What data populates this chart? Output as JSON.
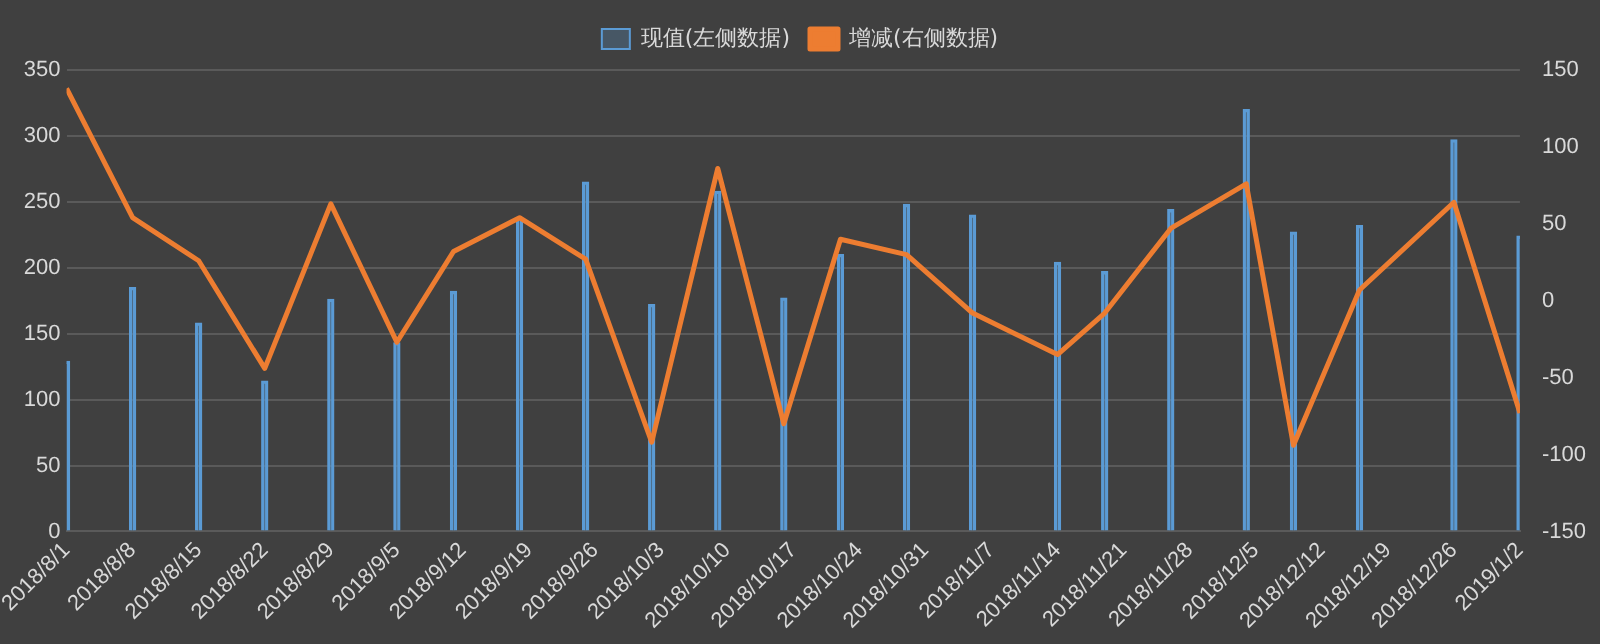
{
  "chart_data": {
    "type": "bar",
    "legend": "top",
    "grid": "y",
    "x": [
      "2018-08-01",
      "2018-08-08",
      "2018-08-15",
      "2018-08-22",
      "2018-08-29",
      "2018-09-05",
      "2018-09-11",
      "2018-09-18",
      "2018-09-25",
      "2018-10-02",
      "2018-10-09",
      "2018-10-16",
      "2018-10-22",
      "2018-10-29",
      "2018-11-05",
      "2018-11-14",
      "2018-11-19",
      "2018-11-26",
      "2018-12-04",
      "2018-12-09",
      "2018-12-16",
      "2018-12-26",
      "2019-01-02"
    ],
    "xlim": [
      "2018-08-01",
      "2019-01-02"
    ],
    "xticks": [
      {
        "value": "2018-08-01",
        "label": "2018/8/1"
      },
      {
        "value": "2018-08-08",
        "label": "2018/8/8"
      },
      {
        "value": "2018-08-15",
        "label": "2018/8/15"
      },
      {
        "value": "2018-08-22",
        "label": "2018/8/22"
      },
      {
        "value": "2018-08-29",
        "label": "2018/8/29"
      },
      {
        "value": "2018-09-05",
        "label": "2018/9/5"
      },
      {
        "value": "2018-09-12",
        "label": "2018/9/12"
      },
      {
        "value": "2018-09-19",
        "label": "2018/9/19"
      },
      {
        "value": "2018-09-26",
        "label": "2018/9/26"
      },
      {
        "value": "2018-10-03",
        "label": "2018/10/3"
      },
      {
        "value": "2018-10-10",
        "label": "2018/10/10"
      },
      {
        "value": "2018-10-17",
        "label": "2018/10/17"
      },
      {
        "value": "2018-10-24",
        "label": "2018/10/24"
      },
      {
        "value": "2018-10-31",
        "label": "2018/10/31"
      },
      {
        "value": "2018-11-07",
        "label": "2018/11/7"
      },
      {
        "value": "2018-11-14",
        "label": "2018/11/14"
      },
      {
        "value": "2018-11-21",
        "label": "2018/11/21"
      },
      {
        "value": "2018-11-28",
        "label": "2018/11/28"
      },
      {
        "value": "2018-12-05",
        "label": "2018/12/5"
      },
      {
        "value": "2018-12-12",
        "label": "2018/12/12"
      },
      {
        "value": "2018-12-19",
        "label": "2018/12/19"
      },
      {
        "value": "2018-12-26",
        "label": "2018/12/26"
      },
      {
        "value": "2019-01-02",
        "label": "2019/1/2"
      }
    ],
    "ylim": [
      0,
      350
    ],
    "yticks": [
      0,
      50,
      100,
      150,
      200,
      250,
      300,
      350
    ],
    "y2lim": [
      -150,
      150
    ],
    "y2ticks": [
      -150,
      -100,
      -50,
      0,
      50,
      100,
      150
    ],
    "series": [
      {
        "name": "现值(左侧数据)",
        "color": "#5b9bd5",
        "values": [
          129,
          185,
          158,
          114,
          176,
          143,
          182,
          238,
          265,
          172,
          258,
          177,
          210,
          248,
          240,
          204,
          197,
          244,
          320,
          227,
          232,
          297,
          224
        ]
      },
      {
        "name": "增减(右侧数据)",
        "type": "line",
        "axis": "y2",
        "color": "#ed7d31",
        "values": [
          138,
          54,
          26,
          -44,
          63,
          -27,
          32,
          54,
          27,
          -92,
          86,
          -80,
          40,
          30,
          -8,
          -35,
          -8,
          47,
          76,
          -94,
          7,
          64,
          -73
        ]
      }
    ]
  }
}
